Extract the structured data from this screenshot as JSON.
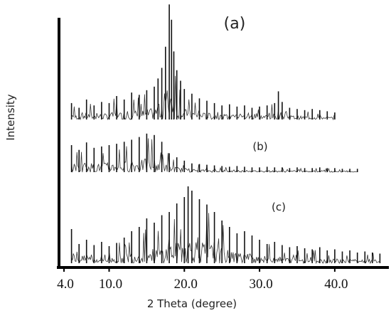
{
  "chart_data": {
    "type": "line",
    "title": "",
    "xlabel": "2 Theta (degree)",
    "ylabel": "Intensity",
    "xlim": [
      4.0,
      47.0
    ],
    "x_ticks": [
      4.0,
      10.0,
      20.0,
      30.0,
      40.0
    ],
    "x_tick_labels": [
      "4.0",
      "10.0",
      "20.0",
      "30.0",
      "40.0"
    ],
    "grid": false,
    "legend": "none",
    "series": [
      {
        "name": "(a)",
        "x": [
          5,
          6,
          7,
          8,
          9,
          10,
          11,
          12,
          13,
          14,
          15,
          16,
          16.5,
          17,
          17.5,
          18,
          18.3,
          18.6,
          19,
          19.5,
          20,
          21,
          22,
          23,
          24,
          25,
          26,
          27,
          28,
          29,
          30,
          31,
          32,
          32.5,
          33,
          34,
          35,
          36,
          37,
          38,
          39,
          40
        ],
        "y": [
          0.14,
          0.1,
          0.17,
          0.12,
          0.15,
          0.14,
          0.2,
          0.17,
          0.23,
          0.21,
          0.25,
          0.28,
          0.35,
          0.44,
          0.62,
          0.98,
          0.85,
          0.58,
          0.42,
          0.33,
          0.26,
          0.22,
          0.18,
          0.16,
          0.14,
          0.12,
          0.13,
          0.11,
          0.12,
          0.1,
          0.11,
          0.12,
          0.14,
          0.24,
          0.15,
          0.1,
          0.09,
          0.08,
          0.09,
          0.08,
          0.07,
          0.06
        ]
      },
      {
        "name": "(b)",
        "x": [
          5,
          6,
          7,
          8,
          9,
          10,
          11,
          12,
          13,
          14,
          15,
          16,
          17,
          18,
          19,
          20,
          21,
          22,
          23,
          24,
          25,
          26,
          27,
          28,
          29,
          30,
          31,
          32,
          33,
          34,
          35,
          36,
          37,
          38,
          39,
          40,
          41,
          42,
          43
        ],
        "y": [
          0.4,
          0.33,
          0.44,
          0.36,
          0.38,
          0.4,
          0.42,
          0.45,
          0.48,
          0.52,
          0.57,
          0.55,
          0.45,
          0.28,
          0.22,
          0.17,
          0.13,
          0.12,
          0.11,
          0.1,
          0.09,
          0.08,
          0.09,
          0.08,
          0.07,
          0.07,
          0.08,
          0.07,
          0.07,
          0.06,
          0.07,
          0.06,
          0.06,
          0.07,
          0.06,
          0.06,
          0.05,
          0.05,
          0.05
        ]
      },
      {
        "name": "(c)",
        "x": [
          5,
          6,
          7,
          8,
          9,
          10,
          11,
          12,
          13,
          14,
          15,
          16,
          17,
          18,
          19,
          20,
          20.5,
          21,
          22,
          23,
          24,
          25,
          26,
          27,
          28,
          29,
          30,
          31,
          32,
          33,
          34,
          35,
          36,
          37,
          38,
          39,
          40,
          41,
          42,
          43,
          44,
          45,
          46
        ],
        "y": [
          0.32,
          0.18,
          0.22,
          0.17,
          0.2,
          0.16,
          0.19,
          0.24,
          0.3,
          0.34,
          0.42,
          0.38,
          0.45,
          0.48,
          0.56,
          0.62,
          0.72,
          0.68,
          0.6,
          0.55,
          0.48,
          0.4,
          0.34,
          0.28,
          0.3,
          0.26,
          0.22,
          0.18,
          0.2,
          0.17,
          0.15,
          0.16,
          0.14,
          0.13,
          0.15,
          0.12,
          0.13,
          0.11,
          0.12,
          0.1,
          0.11,
          0.1,
          0.09
        ]
      }
    ]
  }
}
